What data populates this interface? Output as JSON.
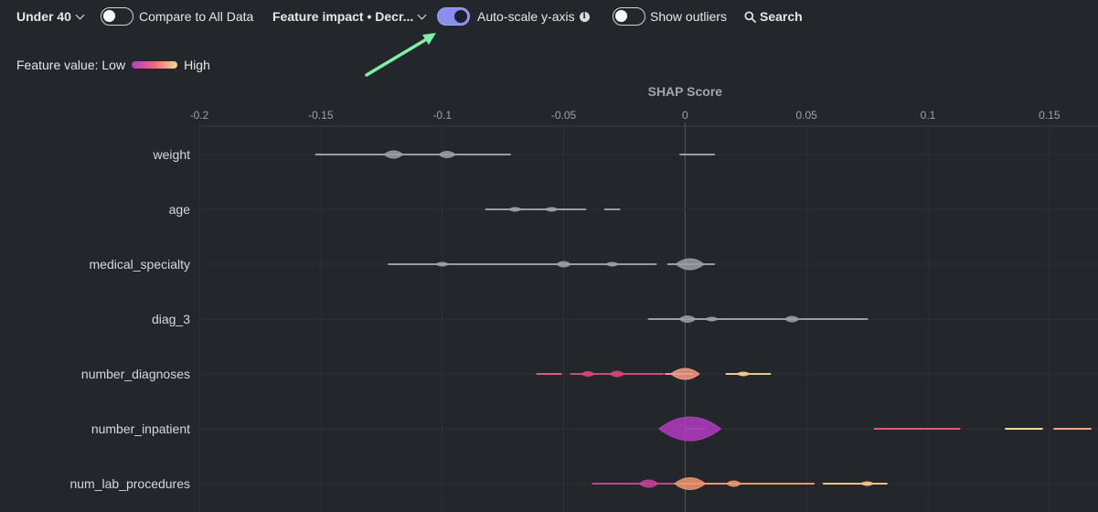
{
  "toolbar": {
    "filter_label": "Under 40",
    "compare_label": "Compare to All Data",
    "compare_enabled": false,
    "sort_label": "Feature impact • Decr...",
    "autoscale_label": "Auto-scale y-axis",
    "autoscale_enabled": true,
    "info_glyph": "i",
    "outliers_label": "Show outliers",
    "outliers_enabled": false,
    "search_label": "Search"
  },
  "legend": {
    "label": "Feature value: Low",
    "high_label": "High",
    "low_color": "#b13cbf",
    "mid_color": "#f06a7e",
    "high_color": "#fdd68c"
  },
  "annotation": {
    "arrow_color": "#7ef0a8",
    "points_to": "autoscale-toggle"
  },
  "chart_data": {
    "type": "violin",
    "title": "SHAP Score",
    "xlabel": "SHAP Score",
    "xlim": [
      -0.2,
      0.17
    ],
    "xticks": [
      -0.2,
      -0.15,
      -0.1,
      -0.05,
      0,
      0.05,
      0.1,
      0.15
    ],
    "xtick_labels": [
      "-0.2",
      "-0.15",
      "-0.1",
      "-0.05",
      "0",
      "0.05",
      "0.1",
      "0.15"
    ],
    "grid": true,
    "features": [
      {
        "name": "weight",
        "segments": [
          {
            "x0": -0.152,
            "x1": -0.072,
            "color": "#9a9da2",
            "bumps": [
              [
                -0.12,
                4
              ],
              [
                -0.098,
                3.5
              ]
            ]
          },
          {
            "x0": -0.002,
            "x1": 0.012,
            "color": "#9a9da2",
            "bumps": []
          }
        ]
      },
      {
        "name": "age",
        "segments": [
          {
            "x0": -0.082,
            "x1": -0.041,
            "color": "#9a9da2",
            "bumps": [
              [
                -0.07,
                2
              ],
              [
                -0.055,
                2
              ]
            ]
          },
          {
            "x0": -0.033,
            "x1": -0.027,
            "color": "#9a9da2",
            "bumps": []
          }
        ]
      },
      {
        "name": "medical_specialty",
        "segments": [
          {
            "x0": -0.122,
            "x1": -0.012,
            "color": "#9a9da2",
            "bumps": [
              [
                -0.1,
                2
              ],
              [
                -0.05,
                3
              ],
              [
                -0.03,
                2
              ]
            ]
          },
          {
            "x0": -0.007,
            "x1": 0.012,
            "color": "#9a9da2",
            "bumps": [
              [
                0.002,
                6
              ]
            ]
          }
        ]
      },
      {
        "name": "diag_3",
        "segments": [
          {
            "x0": -0.015,
            "x1": 0.075,
            "color": "#9a9da2",
            "bumps": [
              [
                0.001,
                3.5
              ],
              [
                0.011,
                2
              ],
              [
                0.044,
                3
              ]
            ]
          }
        ]
      },
      {
        "name": "number_diagnoses",
        "segments": [
          {
            "x0": -0.061,
            "x1": -0.051,
            "color": "#e55677",
            "bumps": []
          },
          {
            "x0": -0.047,
            "x1": -0.009,
            "color": "#d4477d",
            "bumps": [
              [
                -0.04,
                2.5
              ],
              [
                -0.028,
                3
              ]
            ]
          },
          {
            "x0": -0.008,
            "x1": 0.003,
            "color": "#f59a86",
            "bumps": [
              [
                0.0,
                6
              ]
            ]
          },
          {
            "x0": 0.017,
            "x1": 0.035,
            "color": "#f8c582",
            "bumps": [
              [
                0.024,
                2
              ]
            ]
          }
        ]
      },
      {
        "name": "number_inpatient",
        "segments": [
          {
            "x0": 0.0,
            "x1": 0.008,
            "color": "#b13cbf",
            "bumps": [
              [
                0.002,
                13
              ]
            ]
          },
          {
            "x0": 0.078,
            "x1": 0.113,
            "color": "#e55677",
            "bumps": []
          },
          {
            "x0": 0.132,
            "x1": 0.147,
            "color": "#fdd68c",
            "bumps": []
          },
          {
            "x0": 0.152,
            "x1": 0.167,
            "color": "#f5a57f",
            "bumps": []
          }
        ]
      },
      {
        "name": "num_lab_procedures",
        "segments": [
          {
            "x0": -0.038,
            "x1": -0.002,
            "color": "#c63f94",
            "bumps": [
              [
                -0.015,
                4
              ]
            ]
          },
          {
            "x0": -0.002,
            "x1": 0.053,
            "color": "#f0966f",
            "bumps": [
              [
                0.002,
                6.5
              ],
              [
                0.02,
                3
              ]
            ]
          },
          {
            "x0": 0.057,
            "x1": 0.083,
            "color": "#f7c07d",
            "bumps": [
              [
                0.075,
                2
              ]
            ]
          }
        ]
      }
    ]
  }
}
